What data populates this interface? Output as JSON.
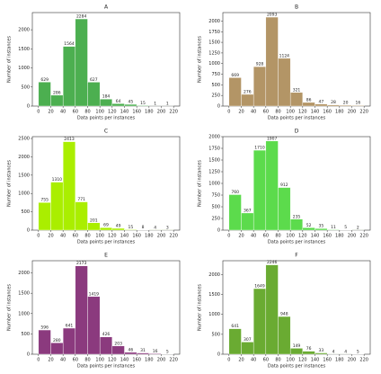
{
  "chart_data": [
    {
      "type": "histogram",
      "title": "A",
      "bins": [
        0,
        20,
        40,
        60,
        80,
        100,
        120,
        140,
        160,
        180,
        200,
        220
      ],
      "values": [
        629,
        286,
        1564,
        2284,
        627,
        184,
        64,
        45,
        15,
        1,
        1
      ],
      "color": "#4caf50",
      "xlim": [
        -10,
        230
      ],
      "ylim": [
        0,
        2450
      ],
      "xticks": [
        0,
        20,
        40,
        60,
        80,
        100,
        120,
        140,
        160,
        180,
        200,
        220
      ],
      "yticks": [
        0,
        500,
        1000,
        1500,
        2000
      ],
      "x_label": "Data points per instances",
      "y_label": "Number of instances"
    },
    {
      "type": "histogram",
      "title": "B",
      "bins": [
        0,
        20,
        40,
        60,
        80,
        100,
        120,
        140,
        160,
        180,
        200,
        220
      ],
      "values": [
        669,
        276,
        928,
        2093,
        1124,
        321,
        86,
        47,
        28,
        20,
        16
      ],
      "color": "#b39566",
      "xlim": [
        -10,
        230
      ],
      "ylim": [
        0,
        2200
      ],
      "xticks": [
        0,
        20,
        40,
        60,
        80,
        100,
        120,
        140,
        160,
        180,
        200,
        220
      ],
      "yticks": [
        0,
        250,
        500,
        750,
        1000,
        1250,
        1500,
        1750,
        2000
      ],
      "x_label": "Data points per instances",
      "y_label": "Number of instances"
    },
    {
      "type": "histogram",
      "title": "C",
      "bins": [
        0,
        20,
        40,
        60,
        80,
        100,
        120,
        140,
        160,
        180,
        200,
        220
      ],
      "values": [
        755,
        1310,
        2413,
        771,
        201,
        69,
        49,
        15,
        8,
        4,
        3
      ],
      "color": "#aaee00",
      "xlim": [
        -10,
        230
      ],
      "ylim": [
        0,
        2550
      ],
      "xticks": [
        0,
        20,
        40,
        60,
        80,
        100,
        120,
        140,
        160,
        180,
        200,
        220
      ],
      "yticks": [
        0,
        500,
        1000,
        1500,
        2000,
        2500
      ],
      "x_label": "Data points per instances",
      "y_label": "Number of instances"
    },
    {
      "type": "histogram",
      "title": "D",
      "bins": [
        0,
        20,
        40,
        60,
        80,
        100,
        120,
        140,
        160,
        180,
        200,
        220
      ],
      "values": [
        760,
        367,
        1710,
        1907,
        912,
        235,
        52,
        35,
        11,
        5,
        2
      ],
      "color": "#5cdb4c",
      "xlim": [
        -10,
        230
      ],
      "ylim": [
        0,
        2000
      ],
      "xticks": [
        0,
        20,
        40,
        60,
        80,
        100,
        120,
        140,
        160,
        180,
        200,
        220
      ],
      "yticks": [
        0,
        250,
        500,
        750,
        1000,
        1250,
        1500,
        1750,
        2000
      ],
      "x_label": "Data points per instances",
      "y_label": "Number of instances"
    },
    {
      "type": "histogram",
      "title": "E",
      "bins": [
        0,
        20,
        40,
        60,
        80,
        100,
        120,
        140,
        160,
        180,
        200,
        220
      ],
      "values": [
        596,
        280,
        641,
        2173,
        1419,
        426,
        203,
        46,
        31,
        16,
        5
      ],
      "color": "#8b3a7e",
      "xlim": [
        -10,
        230
      ],
      "ylim": [
        0,
        2300
      ],
      "xticks": [
        0,
        20,
        40,
        60,
        80,
        100,
        120,
        140,
        160,
        180,
        200,
        220
      ],
      "yticks": [
        0,
        500,
        1000,
        1500,
        2000
      ],
      "x_label": "Data points per instances",
      "y_label": "Number of instances"
    },
    {
      "type": "histogram",
      "title": "F",
      "bins": [
        0,
        20,
        40,
        60,
        80,
        100,
        120,
        140,
        160,
        180,
        200,
        220
      ],
      "values": [
        641,
        307,
        1649,
        2246,
        948,
        149,
        76,
        33,
        4,
        4,
        5
      ],
      "color": "#6aab32",
      "xlim": [
        -10,
        230
      ],
      "ylim": [
        0,
        2350
      ],
      "xticks": [
        0,
        20,
        40,
        60,
        80,
        100,
        120,
        140,
        160,
        180,
        200,
        220
      ],
      "yticks": [
        0,
        500,
        1000,
        1500,
        2000
      ],
      "x_label": "Data points per instances",
      "y_label": "Number of instances"
    }
  ]
}
